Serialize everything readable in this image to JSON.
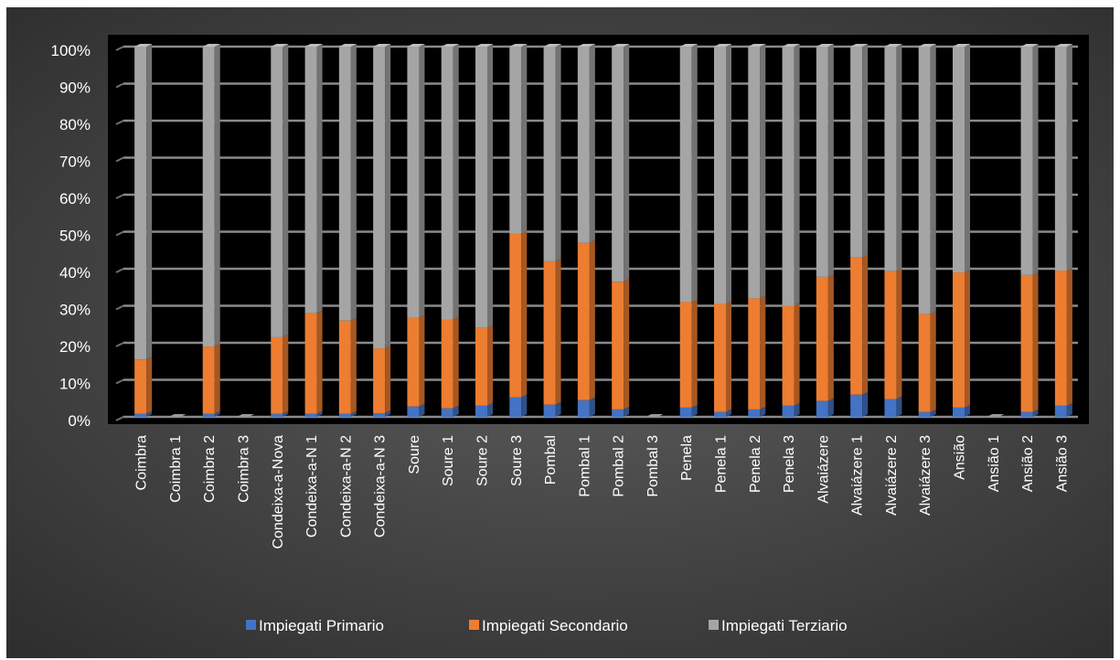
{
  "chart_data": {
    "type": "bar",
    "stacked": "percent",
    "title": "",
    "xlabel": "",
    "ylabel": "",
    "ylim": [
      0,
      100
    ],
    "y_ticks": [
      "0%",
      "10%",
      "20%",
      "30%",
      "40%",
      "50%",
      "60%",
      "70%",
      "80%",
      "90%",
      "100%"
    ],
    "grid": true,
    "legend_position": "bottom",
    "categories": [
      "Coimbra",
      "Coimbra 1",
      "Coimbra 2",
      "Coimbra 3",
      "Condeixa-a-Nova",
      "Condeixa-a-N 1",
      "Condeixa-a-N 2",
      "Condeixa-a-N 3",
      "Soure",
      "Soure 1",
      "Soure 2",
      "Soure 3",
      "Pombal",
      "Pombal 1",
      "Pombal 2",
      "Pombal 3",
      "Penela",
      "Penela 1",
      "Penela 2",
      "Penela 3",
      "Alvaiázere",
      "Alvaiázere 1",
      "Alvaiázere 2",
      "Alvaiázere 3",
      "Ansião",
      "Ansião 1",
      "Ansião 2",
      "Ansião 3"
    ],
    "series": [
      {
        "name": "Impiegati Primario",
        "color": "#4472c4",
        "values": [
          0.8,
          0,
          0.8,
          0,
          0.8,
          0.8,
          0.8,
          1.0,
          2.8,
          2.3,
          3.0,
          5.3,
          3.3,
          4.5,
          2.0,
          0,
          2.5,
          1.3,
          2.0,
          3.0,
          4.3,
          6.0,
          4.8,
          1.3,
          2.5,
          0,
          1.3,
          3.0
        ]
      },
      {
        "name": "Impiegati Secondario",
        "color": "#ed7d31",
        "values": [
          14.7,
          0,
          18.2,
          0,
          20.7,
          27.2,
          25.2,
          17.5,
          24.0,
          24.0,
          21.0,
          44.2,
          38.7,
          42.5,
          34.5,
          0,
          28.5,
          29.2,
          30.0,
          27.0,
          33.5,
          37.0,
          34.5,
          26.5,
          36.5,
          0,
          37.0,
          36.5
        ]
      },
      {
        "name": "Impiegati Terziario",
        "color": "#a5a5a5",
        "values": [
          84.5,
          0,
          81.0,
          0,
          78.5,
          72.0,
          74.0,
          81.5,
          73.2,
          73.7,
          76.0,
          50.5,
          58.0,
          53.0,
          63.5,
          0,
          69.0,
          69.5,
          68.0,
          70.0,
          62.2,
          57.0,
          60.7,
          72.2,
          61.0,
          0,
          61.7,
          60.5
        ]
      }
    ]
  }
}
